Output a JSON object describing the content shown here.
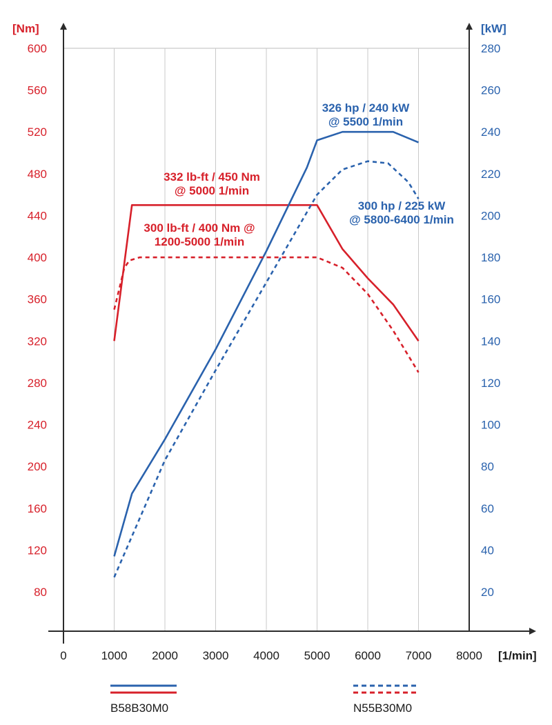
{
  "colors": {
    "torque": "#d7202a",
    "power": "#2a62ad",
    "axis": "#2b2b2b",
    "grid": "#c9c9c9"
  },
  "chart_data": {
    "type": "line",
    "x_unit": "[1/min]",
    "x_ticks": [
      0,
      1000,
      2000,
      3000,
      4000,
      5000,
      6000,
      7000,
      8000
    ],
    "xlim": [
      0,
      8000
    ],
    "y_left": {
      "unit": "[Nm]",
      "ticks": [
        80,
        120,
        160,
        200,
        240,
        280,
        320,
        360,
        400,
        440,
        480,
        520,
        560,
        600
      ],
      "lim": [
        20,
        600
      ]
    },
    "y_right": {
      "unit": "[kW]",
      "ticks": [
        20,
        40,
        60,
        80,
        100,
        120,
        140,
        160,
        180,
        200,
        220,
        240,
        260,
        280
      ],
      "lim": [
        -6.67,
        280
      ]
    },
    "grid": "vertical",
    "series": [
      {
        "name": "B58B30M0",
        "quantity": "torque",
        "axis": "left",
        "style": "solid",
        "x": [
          1000,
          1350,
          5000,
          5500,
          6000,
          6500,
          7000
        ],
        "y": [
          320,
          450,
          450,
          408,
          380,
          355,
          320
        ]
      },
      {
        "name": "B58B30M0",
        "quantity": "power",
        "axis": "right",
        "style": "solid",
        "x": [
          1000,
          1350,
          2000,
          3000,
          4000,
          4800,
          5000,
          5500,
          6000,
          6500,
          7000
        ],
        "y": [
          37,
          67,
          93,
          136,
          183,
          223,
          236,
          240,
          240,
          240,
          235
        ]
      },
      {
        "name": "N55B30M0",
        "quantity": "torque",
        "axis": "left",
        "style": "dashed",
        "x": [
          1000,
          1100,
          1200,
          1300,
          1500,
          2000,
          3000,
          4000,
          5000,
          5500,
          6000,
          6500,
          7000
        ],
        "y": [
          350,
          370,
          390,
          397,
          400,
          400,
          400,
          400,
          400,
          390,
          365,
          330,
          290
        ]
      },
      {
        "name": "N55B30M0",
        "quantity": "power",
        "axis": "right",
        "style": "dashed",
        "x": [
          1000,
          2000,
          3000,
          4000,
          5000,
          5500,
          6000,
          6400,
          6800,
          7000
        ],
        "y": [
          27,
          83,
          126,
          168,
          210,
          222,
          226,
          225,
          216,
          208
        ]
      }
    ],
    "annotations": [
      {
        "id": "b58-power",
        "color": "power",
        "lines": [
          "326 hp / 240 kW",
          "@ 5500 1/min"
        ]
      },
      {
        "id": "n55-power",
        "color": "power",
        "lines": [
          "300 hp / 225 kW",
          "@ 5800-6400 1/min"
        ]
      },
      {
        "id": "b58-torque",
        "color": "torque",
        "lines": [
          "332 lb-ft / 450 Nm",
          "@ 5000 1/min"
        ]
      },
      {
        "id": "n55-torque",
        "color": "torque",
        "lines": [
          "300 lb-ft / 400 Nm @",
          "1200-5000 1/min"
        ]
      }
    ],
    "legend": [
      {
        "label": "B58B30M0",
        "style": "solid"
      },
      {
        "label": "N55B30M0",
        "style": "dashed"
      }
    ]
  }
}
